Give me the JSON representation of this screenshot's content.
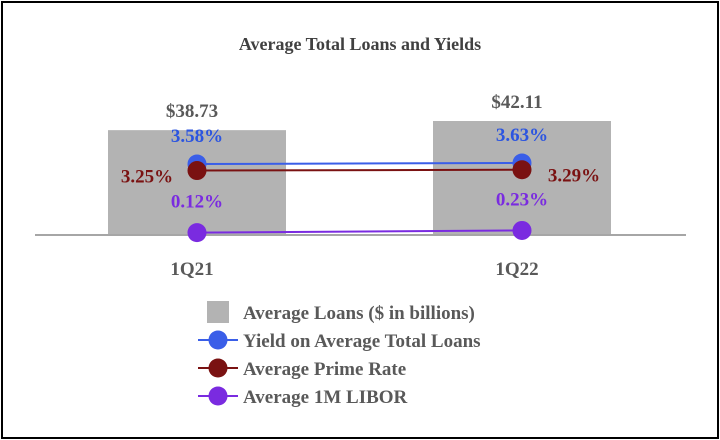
{
  "chart_data": {
    "type": "bar",
    "title": "Average Total Loans and Yields",
    "categories": [
      "1Q21",
      "1Q22"
    ],
    "bar_series": {
      "name": "Average Loans ($ in billions)",
      "values": [
        38.73,
        42.11
      ],
      "labels": [
        "$38.73",
        "$42.11"
      ],
      "color": "#b3b3b3"
    },
    "line_series": [
      {
        "name": "Yield on Average Total Loans",
        "values": [
          3.58,
          3.63
        ],
        "labels": [
          "3.58%",
          "3.63%"
        ],
        "color": "#3a5ee8",
        "label_color": "#2c55e0"
      },
      {
        "name": "Average Prime Rate",
        "values": [
          3.25,
          3.29
        ],
        "labels": [
          "3.25%",
          "3.29%"
        ],
        "color": "#7a1212",
        "label_color": "#7a1212"
      },
      {
        "name": "Average 1M LIBOR",
        "values": [
          0.12,
          0.23
        ],
        "labels": [
          "0.12%",
          "0.23%"
        ],
        "color": "#7a2be0",
        "label_color": "#7a2be0"
      }
    ],
    "grid": false,
    "legend_position": "bottom"
  },
  "colors": {
    "axis": "#a6a6a6",
    "text_gray": "#595959",
    "legend_text": "#595959"
  }
}
